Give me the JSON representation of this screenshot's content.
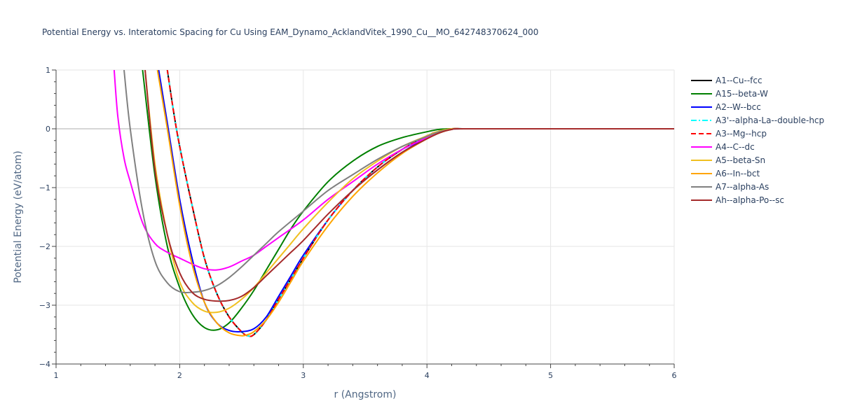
{
  "chart_data": {
    "type": "line",
    "title": "Potential Energy vs. Interatomic Spacing for Cu Using EAM_Dynamo_AcklandVitek_1990_Cu__MO_642748370624_000",
    "xlabel": "r (Angstrom)",
    "ylabel": "Potential Energy (eV/atom)",
    "xlim": [
      1,
      6
    ],
    "ylim": [
      -4,
      1
    ],
    "xticks": [
      1,
      2,
      3,
      4,
      5,
      6
    ],
    "yticks": [
      1,
      0,
      -1,
      -2,
      -3,
      -4
    ],
    "xtick_labels": [
      "1",
      "2",
      "3",
      "4",
      "5",
      "6"
    ],
    "ytick_labels": [
      "1",
      "0",
      "−1",
      "−2",
      "−3",
      "−4"
    ],
    "grid": true,
    "legend_position": "top-right",
    "series": [
      {
        "name": "A1--Cu--fcc",
        "color": "#000000",
        "dash": "solid",
        "x": [
          1.9,
          1.95,
          2.0,
          2.1,
          2.2,
          2.3,
          2.4,
          2.5,
          2.55,
          2.6,
          2.7,
          2.8,
          2.9,
          3.0,
          3.2,
          3.4,
          3.6,
          3.8,
          4.0,
          4.1,
          4.2,
          4.3,
          4.4,
          5.0,
          6.0
        ],
        "y": [
          1.0,
          0.3,
          -0.3,
          -1.3,
          -2.2,
          -2.8,
          -3.2,
          -3.45,
          -3.52,
          -3.5,
          -3.25,
          -2.9,
          -2.55,
          -2.2,
          -1.55,
          -1.05,
          -0.65,
          -0.35,
          -0.12,
          -0.04,
          0.0,
          0.0,
          0.0,
          0.0,
          0.0
        ]
      },
      {
        "name": "A15--beta-W",
        "color": "#008000",
        "dash": "solid",
        "x": [
          1.7,
          1.8,
          1.9,
          2.0,
          2.1,
          2.2,
          2.3,
          2.4,
          2.5,
          2.6,
          2.7,
          2.8,
          2.9,
          3.0,
          3.2,
          3.4,
          3.6,
          3.8,
          4.0,
          4.1,
          4.2,
          4.3,
          5.0,
          6.0
        ],
        "y": [
          1.0,
          -0.8,
          -2.0,
          -2.7,
          -3.15,
          -3.38,
          -3.42,
          -3.3,
          -3.05,
          -2.75,
          -2.4,
          -2.05,
          -1.7,
          -1.4,
          -0.9,
          -0.55,
          -0.3,
          -0.15,
          -0.05,
          -0.01,
          0.0,
          0.0,
          0.0,
          0.0
        ]
      },
      {
        "name": "A2--W--bcc",
        "color": "#0000ff",
        "dash": "solid",
        "x": [
          1.83,
          1.9,
          2.0,
          2.1,
          2.2,
          2.3,
          2.4,
          2.5,
          2.6,
          2.7,
          2.8,
          2.9,
          3.0,
          3.2,
          3.4,
          3.6,
          3.8,
          4.0,
          4.1,
          4.2,
          4.3,
          5.0,
          6.0
        ],
        "y": [
          1.0,
          0.1,
          -1.2,
          -2.2,
          -2.95,
          -3.3,
          -3.43,
          -3.45,
          -3.4,
          -3.2,
          -2.85,
          -2.5,
          -2.15,
          -1.55,
          -1.05,
          -0.7,
          -0.4,
          -0.15,
          -0.06,
          -0.01,
          0.0,
          0.0,
          0.0
        ]
      },
      {
        "name": "A3'--alpha-La--double-hcp",
        "color": "#00ffff",
        "dash": "dashdot",
        "x": [
          1.9,
          1.95,
          2.0,
          2.1,
          2.2,
          2.3,
          2.4,
          2.5,
          2.55,
          2.6,
          2.7,
          2.8,
          2.9,
          3.0,
          3.2,
          3.4,
          3.6,
          3.8,
          4.0,
          4.1,
          4.2,
          4.3,
          4.4,
          5.0,
          6.0
        ],
        "y": [
          1.0,
          0.3,
          -0.3,
          -1.3,
          -2.2,
          -2.8,
          -3.2,
          -3.45,
          -3.52,
          -3.5,
          -3.25,
          -2.9,
          -2.55,
          -2.2,
          -1.55,
          -1.05,
          -0.65,
          -0.35,
          -0.12,
          -0.04,
          0.0,
          0.0,
          0.0,
          0.0,
          0.0
        ]
      },
      {
        "name": "A3--Mg--hcp",
        "color": "#ff0000",
        "dash": "dash",
        "x": [
          1.9,
          1.95,
          2.0,
          2.1,
          2.2,
          2.3,
          2.4,
          2.5,
          2.55,
          2.6,
          2.7,
          2.8,
          2.9,
          3.0,
          3.2,
          3.4,
          3.6,
          3.8,
          4.0,
          4.1,
          4.2,
          4.3,
          4.4,
          5.0,
          6.0
        ],
        "y": [
          1.0,
          0.3,
          -0.3,
          -1.3,
          -2.2,
          -2.8,
          -3.2,
          -3.45,
          -3.52,
          -3.5,
          -3.25,
          -2.9,
          -2.55,
          -2.2,
          -1.55,
          -1.05,
          -0.65,
          -0.35,
          -0.12,
          -0.04,
          0.0,
          0.0,
          0.0,
          0.0,
          0.0
        ]
      },
      {
        "name": "A4--C--dc",
        "color": "#ff00ff",
        "dash": "solid",
        "x": [
          1.47,
          1.5,
          1.55,
          1.6,
          1.7,
          1.8,
          1.9,
          2.0,
          2.1,
          2.2,
          2.3,
          2.4,
          2.5,
          2.6,
          2.7,
          2.8,
          3.0,
          3.2,
          3.4,
          3.6,
          3.8,
          4.0,
          4.1,
          4.2,
          4.3,
          5.0,
          6.0
        ],
        "y": [
          1.0,
          0.2,
          -0.5,
          -0.9,
          -1.6,
          -1.95,
          -2.1,
          -2.2,
          -2.3,
          -2.38,
          -2.4,
          -2.35,
          -2.25,
          -2.15,
          -2.0,
          -1.85,
          -1.55,
          -1.2,
          -0.9,
          -0.6,
          -0.35,
          -0.15,
          -0.06,
          -0.01,
          0.0,
          0.0,
          0.0
        ]
      },
      {
        "name": "A5--beta-Sn",
        "color": "#f0c020",
        "dash": "solid",
        "x": [
          1.72,
          1.8,
          1.9,
          2.0,
          2.1,
          2.2,
          2.3,
          2.4,
          2.5,
          2.6,
          2.7,
          2.8,
          2.9,
          3.0,
          3.2,
          3.4,
          3.6,
          3.8,
          4.0,
          4.1,
          4.2,
          4.3,
          5.0,
          6.0
        ],
        "y": [
          1.0,
          -0.6,
          -1.8,
          -2.6,
          -2.95,
          -3.1,
          -3.12,
          -3.05,
          -2.9,
          -2.7,
          -2.45,
          -2.2,
          -1.95,
          -1.7,
          -1.25,
          -0.85,
          -0.55,
          -0.3,
          -0.12,
          -0.04,
          0.0,
          0.0,
          0.0,
          0.0
        ]
      },
      {
        "name": "A6--In--bct",
        "color": "#ffa500",
        "dash": "solid",
        "x": [
          1.82,
          1.9,
          2.0,
          2.1,
          2.2,
          2.3,
          2.4,
          2.5,
          2.55,
          2.6,
          2.7,
          2.8,
          2.9,
          3.0,
          3.2,
          3.4,
          3.6,
          3.8,
          4.0,
          4.1,
          4.2,
          4.3,
          5.0,
          6.0
        ],
        "y": [
          1.0,
          0.0,
          -1.3,
          -2.3,
          -2.95,
          -3.3,
          -3.47,
          -3.52,
          -3.5,
          -3.45,
          -3.25,
          -2.95,
          -2.6,
          -2.25,
          -1.65,
          -1.15,
          -0.75,
          -0.42,
          -0.17,
          -0.07,
          -0.01,
          0.0,
          0.0,
          0.0
        ]
      },
      {
        "name": "A7--alpha-As",
        "color": "#808080",
        "dash": "solid",
        "x": [
          1.55,
          1.6,
          1.7,
          1.8,
          1.9,
          2.0,
          2.1,
          2.2,
          2.3,
          2.4,
          2.5,
          2.6,
          2.7,
          2.8,
          3.0,
          3.2,
          3.4,
          3.6,
          3.8,
          4.0,
          4.1,
          4.2,
          4.3,
          5.0,
          6.0
        ],
        "y": [
          1.0,
          0.0,
          -1.4,
          -2.25,
          -2.62,
          -2.77,
          -2.78,
          -2.75,
          -2.67,
          -2.53,
          -2.35,
          -2.15,
          -1.95,
          -1.75,
          -1.4,
          -1.05,
          -0.78,
          -0.52,
          -0.3,
          -0.13,
          -0.05,
          -0.01,
          0.0,
          0.0,
          0.0
        ]
      },
      {
        "name": "Ah--alpha-Po--sc",
        "color": "#a52a2a",
        "dash": "solid",
        "x": [
          1.72,
          1.8,
          1.9,
          2.0,
          2.1,
          2.2,
          2.3,
          2.4,
          2.5,
          2.6,
          2.7,
          2.8,
          2.9,
          3.0,
          3.2,
          3.4,
          3.6,
          3.8,
          4.0,
          4.1,
          4.2,
          4.3,
          5.0,
          6.0
        ],
        "y": [
          1.0,
          -0.7,
          -1.8,
          -2.45,
          -2.78,
          -2.9,
          -2.93,
          -2.92,
          -2.85,
          -2.7,
          -2.5,
          -2.3,
          -2.1,
          -1.9,
          -1.45,
          -1.05,
          -0.7,
          -0.4,
          -0.17,
          -0.07,
          -0.01,
          0.0,
          0.0,
          0.0
        ]
      }
    ]
  }
}
